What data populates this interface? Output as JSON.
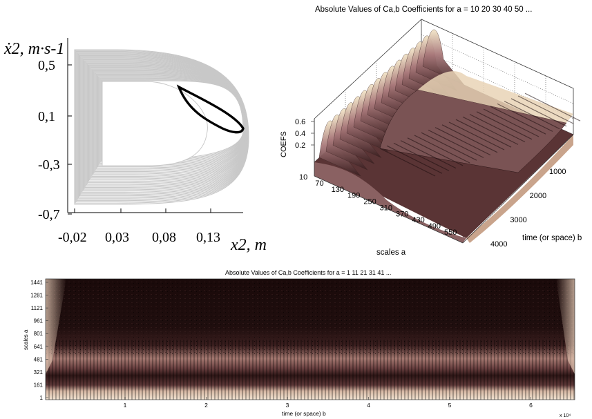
{
  "chart_data": [
    {
      "type": "line",
      "ylabel": "ẋ2, m·s-1",
      "xlabel": "x2, m",
      "x_ticks": [
        "-0,02",
        "0,03",
        "0,08",
        "0,13"
      ],
      "y_ticks": [
        "0,5",
        "0,1",
        "-0,3",
        "-0,7"
      ],
      "xlim": [
        -0.04,
        0.16
      ],
      "ylim": [
        -0.7,
        0.7
      ],
      "grid": false,
      "series": [
        {
          "color": "#c8c8c8",
          "note_x": [
            -0.03,
            -0.03,
            0.03,
            0.1,
            0.15,
            0.1,
            0.03,
            -0.03
          ],
          "y": [
            -0.6,
            0.62,
            0.62,
            0.5,
            0.05,
            -0.45,
            -0.6,
            -0.6
          ]
        },
        {
          "color": "#000000",
          "x": [
            0.1,
            0.13,
            0.152,
            0.135,
            0.11,
            0.1
          ],
          "y": [
            0.26,
            0.18,
            0.02,
            0.04,
            0.15,
            0.26
          ]
        }
      ]
    },
    {
      "type": "surface",
      "title": "Absolute Values of Ca,b Coefficients for a =  10 20 30 40 50 ...",
      "zlabel": "COEFS",
      "z_ticks": [
        "0.6",
        "0.4",
        "0.2"
      ],
      "xlabel": "scales a",
      "x_ticks": [
        "10",
        "70",
        "130",
        "190",
        "250",
        "310",
        "370",
        "430",
        "490",
        "550"
      ],
      "ylabel": "time (or space) b",
      "y_ticks": [
        "1000",
        "2000",
        "3000",
        "4000"
      ],
      "colormap": "pink"
    },
    {
      "type": "heatmap",
      "title": "Absolute Values of Ca,b Coefficients for a =  1 11 21 31 41 ...",
      "ylabel": "scales a",
      "y_ticks": [
        "1441",
        "1281",
        "1121",
        "961",
        "801",
        "641",
        "481",
        "321",
        "161",
        "1"
      ],
      "xlabel": "time (or space) b",
      "x_ticks": [
        "1",
        "2",
        "3",
        "4",
        "5",
        "6"
      ],
      "x_exponent": "x 10⁴",
      "colormap": "pink"
    }
  ]
}
